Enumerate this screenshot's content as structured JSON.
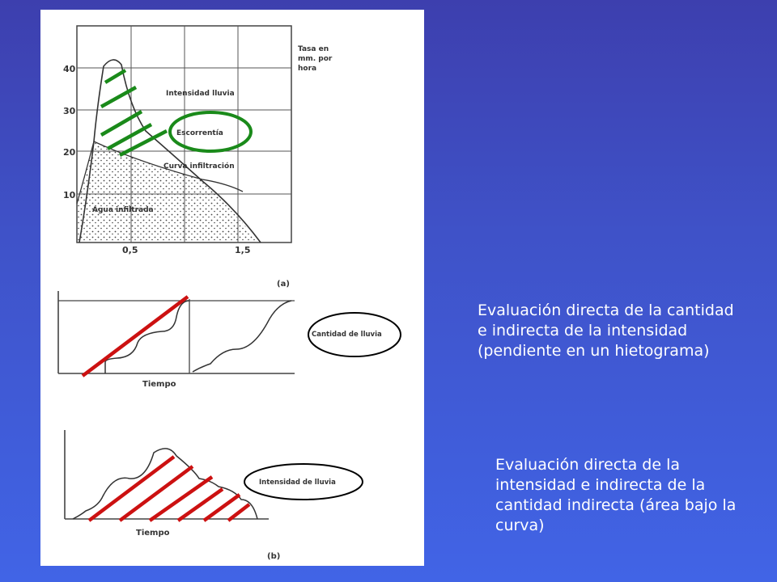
{
  "figure": {
    "chart_a": {
      "y_ticks": [
        "40",
        "30",
        "20",
        "10"
      ],
      "x_ticks": [
        "0,5",
        "1,5"
      ],
      "axis_title": "Tasa en mm. por hora",
      "axis_title_lines": [
        "Tasa en",
        "mm. por",
        "hora"
      ],
      "label_intensity": "Intensidad lluvia",
      "label_runoff": "Escorrentía",
      "label_infiltration_curve": "Curva infiltración",
      "label_infiltrated_water": "Agua infiltrada",
      "panel_label": "(a)"
    },
    "chart_cumulative": {
      "label_rain_amount": "Cantidad de lluvia",
      "x_label": "Tiempo"
    },
    "chart_b": {
      "label_rain_intensity": "Intensidad de lluvia",
      "x_label": "Tiempo",
      "panel_label": "(b)"
    },
    "colors": {
      "runoff_hatch": "#1a8a1a",
      "area_hatch": "#cc1111",
      "highlight_circle": "#1a8a1a",
      "black_circle": "#000000"
    }
  },
  "captions": {
    "cumulative_note": "Evaluación directa de la cantidad e indirecta de la intensidad  (pendiente en un hietograma)",
    "intensity_note": "Evaluación directa de la intensidad e indirecta de la cantidad indirecta (área bajo la curva)"
  }
}
